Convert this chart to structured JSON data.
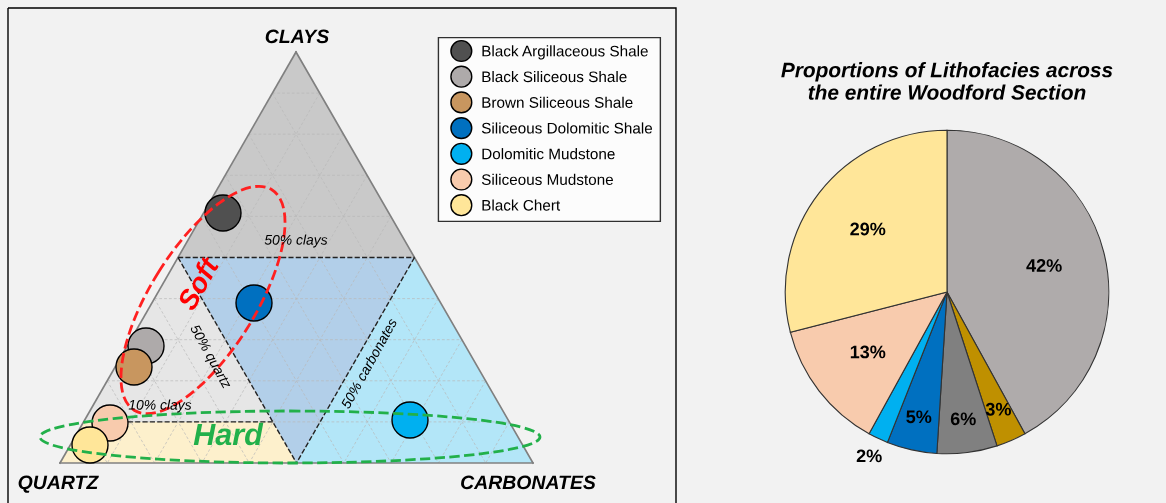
{
  "chart_data": [
    {
      "type": "other",
      "categories": [
        "Black Argillaceous Shale",
        "Black Siliceous Shale",
        "Brown Siliceous Shale",
        "Siliceous Dolomitic Shale",
        "Dolomitic Mudstone",
        "Siliceous Mudstone",
        "Black Chert"
      ],
      "colors": [
        "#505050",
        "#aeaaaa",
        "#c8965f",
        "#0070c0",
        "#00b0f0",
        "#f8cbad",
        "#ffe699"
      ],
      "annotations": [
        "CLAYS",
        "QUARTZ",
        "CARBONATES",
        "50% clays",
        "50% quartz",
        "50% carbonates",
        "10% clays",
        "Soft",
        "Hard"
      ]
    },
    {
      "type": "pie",
      "title": "Proportions of Lithofacies across\nthe entire Woodford Section",
      "categories": [
        null,
        null,
        null,
        null,
        null,
        null,
        null
      ],
      "values": [
        42,
        3,
        6,
        5,
        2,
        13,
        29
      ],
      "colors": [
        "#afabab",
        "#bf9000",
        "#808080",
        "#0070c0",
        "#00b0f0",
        "#f8cbad",
        "#ffe699"
      ],
      "value_labels": [
        "42%",
        "3%",
        "6%",
        "5%",
        "2%",
        "13%",
        "29%"
      ]
    }
  ]
}
